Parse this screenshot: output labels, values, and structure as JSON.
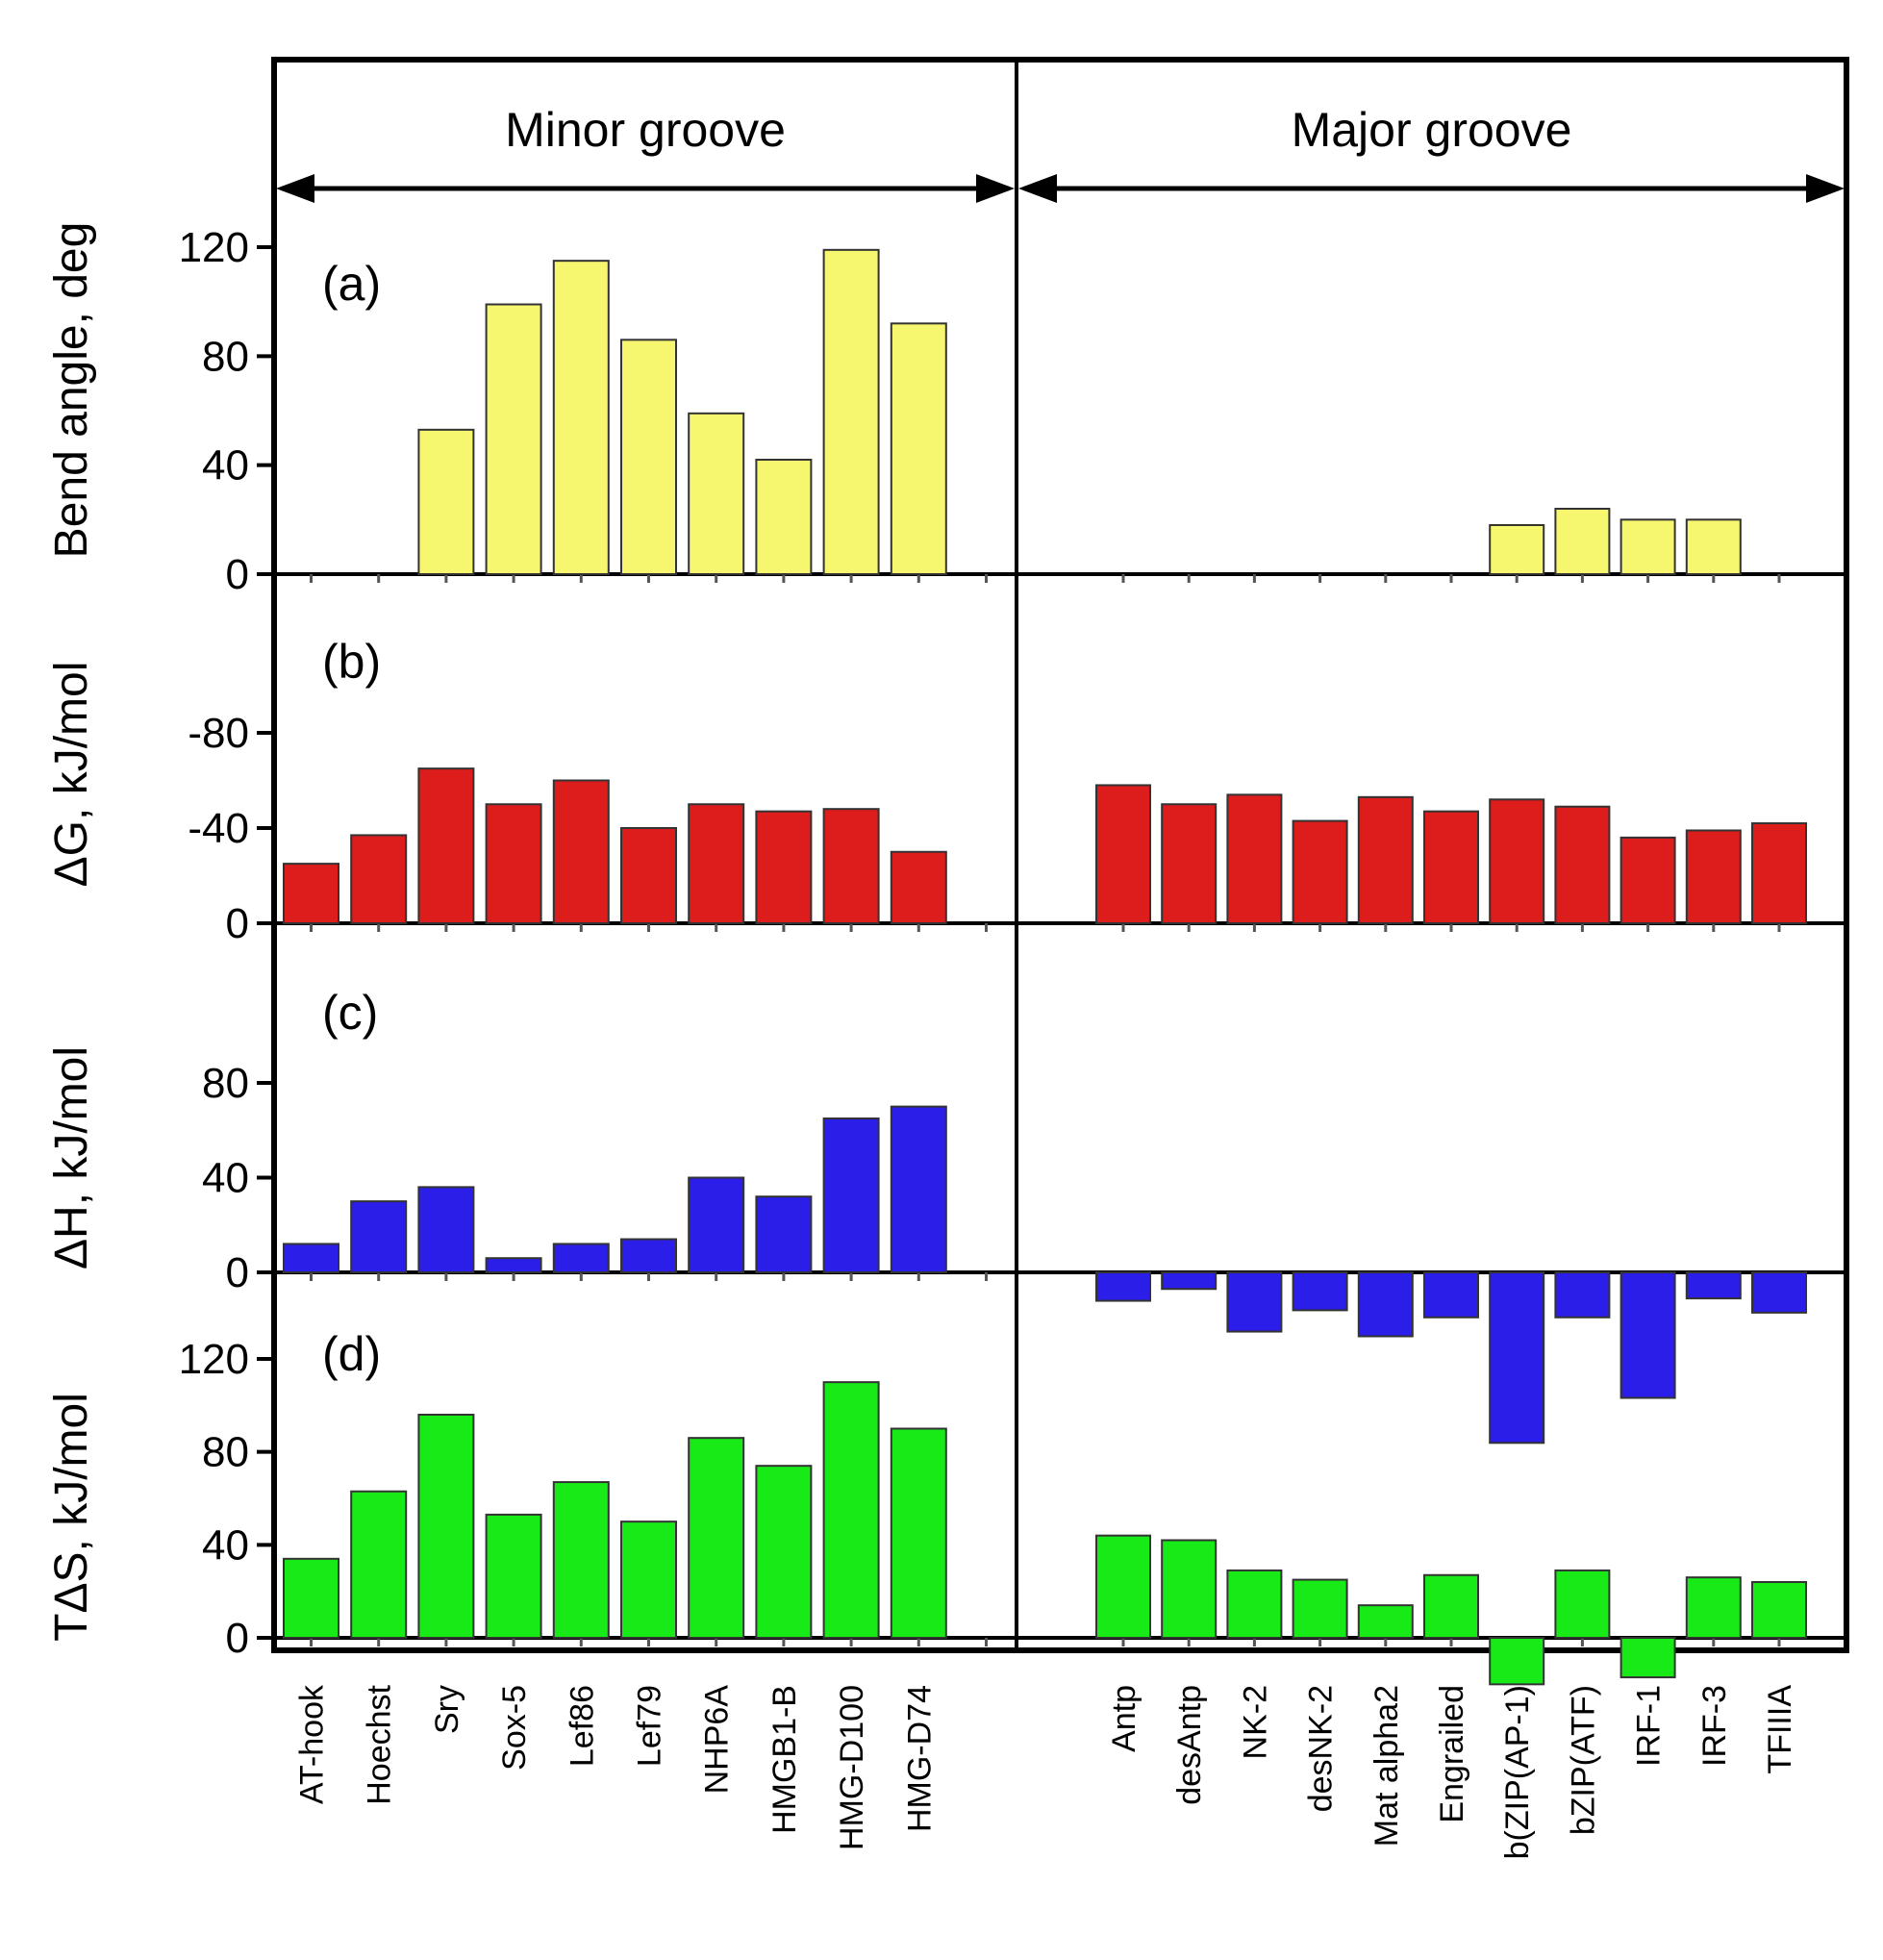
{
  "chart_data": {
    "type": "bar",
    "title": "",
    "groups": [
      {
        "label": "Minor groove",
        "categories": [
          "AT-hook",
          "Hoechst",
          "Sry",
          "Sox-5",
          "Lef86",
          "Lef79",
          "NHP6A",
          "HMGB1-B",
          "HMG-D100",
          "HMG-D74"
        ]
      },
      {
        "label": "Major groove",
        "categories": [
          "Antp",
          "desAntp",
          "NK-2",
          "desNK-2",
          "Mat alpha2",
          "Engrailed",
          "b(ZIP(AP-1)",
          "bZIP(ATF)",
          "IRF-1",
          "IRF-3",
          "TFIIIA"
        ]
      }
    ],
    "panels": [
      {
        "tag": "(a)",
        "ylabel": "Bend angle, deg",
        "ylim": [
          0,
          140
        ],
        "ticks": [
          0,
          40,
          80,
          120
        ],
        "tick_labels": [
          "0",
          "40",
          "80",
          "120"
        ],
        "color": "#f6f76e",
        "minor": [
          null,
          null,
          53,
          99,
          115,
          86,
          59,
          42,
          119,
          92
        ],
        "major": [
          null,
          null,
          null,
          null,
          null,
          null,
          18,
          24,
          20,
          20,
          null
        ]
      },
      {
        "tag": "(b)",
        "ylabel": "ΔG, kJ/mol",
        "ylim": [
          0,
          -90
        ],
        "ticks": [
          0,
          -40,
          -80
        ],
        "tick_labels": [
          "0",
          "-40",
          "-80"
        ],
        "color": "#dd1c1c",
        "minor": [
          -25,
          -37,
          -65,
          -50,
          -60,
          -40,
          -50,
          -47,
          -48,
          -30
        ],
        "major": [
          -58,
          -50,
          -54,
          -43,
          -53,
          -47,
          -52,
          -49,
          -36,
          -39,
          -42
        ]
      },
      {
        "tag": "(c)",
        "ylabel": "ΔH, kJ/mol",
        "ylim": [
          -75,
          110
        ],
        "ticks": [
          0,
          40,
          80
        ],
        "tick_labels": [
          "0",
          "40",
          "80"
        ],
        "color": "#2a1ee8",
        "minor": [
          12,
          30,
          36,
          6,
          12,
          14,
          40,
          32,
          65,
          70
        ],
        "major": [
          -12,
          -7,
          -25,
          -16,
          -27,
          -19,
          -72,
          -19,
          -53,
          -11,
          -17
        ]
      },
      {
        "tag": "(d)",
        "ylabel": "TΔS, kJ/mol",
        "ylim": [
          -25,
          130
        ],
        "ticks": [
          0,
          40,
          80,
          120
        ],
        "tick_labels": [
          "0",
          "40",
          "80",
          "120"
        ],
        "color": "#18ea18",
        "minor": [
          34,
          63,
          96,
          53,
          67,
          50,
          86,
          74,
          110,
          90
        ],
        "major": [
          44,
          42,
          29,
          25,
          14,
          27,
          -20,
          29,
          -17,
          26,
          24
        ]
      }
    ]
  }
}
